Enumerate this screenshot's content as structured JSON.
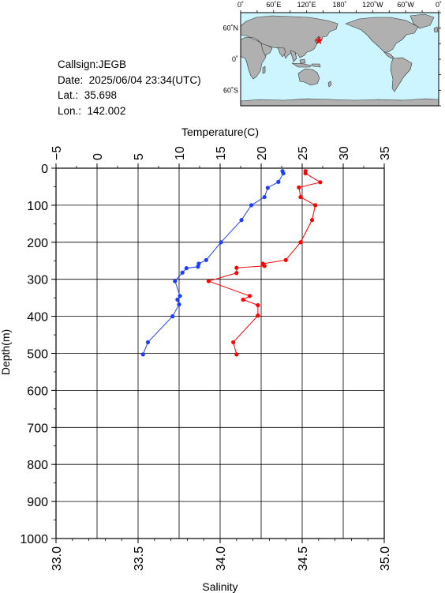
{
  "info": {
    "callsign": "Callsign:JEGB",
    "date": "Date:  2025/06/04 23:34(UTC)",
    "lat": "Lat.:  35.698",
    "lon": "Lon.:  142.002"
  },
  "colors": {
    "temperature": "#1f3fff",
    "salinity": "#ff0000",
    "ocean": "#ccf5ff",
    "land": "#b0b0b0",
    "star": "#ff0000"
  },
  "map": {
    "lon_labels": [
      "0˚",
      "60˚E",
      "120˚E",
      "180˚",
      "120˚W",
      "60˚W",
      "0˚"
    ],
    "lat_labels": [
      "60˚N",
      "0˚",
      "60˚S"
    ],
    "marker": {
      "lat": 35.698,
      "lon": 142.002
    }
  },
  "chart_data": {
    "type": "line",
    "ylabel": "Depth(m)",
    "ylim": [
      1000,
      0
    ],
    "yticks": [
      "0",
      "100",
      "200",
      "300",
      "400",
      "500",
      "600",
      "700",
      "800",
      "900",
      "1000"
    ],
    "ytick_values": [
      0,
      100,
      200,
      300,
      400,
      500,
      600,
      700,
      800,
      900,
      1000
    ],
    "top_axis": {
      "label": "Temperature(C)",
      "range": [
        -5,
        35
      ],
      "ticks": [
        "−5",
        "0",
        "5",
        "10",
        "15",
        "20",
        "25",
        "30",
        "35"
      ],
      "tick_values": [
        -5,
        0,
        5,
        10,
        15,
        20,
        25,
        30,
        35
      ]
    },
    "bottom_axis": {
      "label": "Salinity",
      "range": [
        33.0,
        35.0
      ],
      "ticks": [
        "33.0",
        "33.5",
        "34.0",
        "34.5",
        "35.0"
      ],
      "tick_values": [
        33.0,
        33.5,
        34.0,
        34.5,
        35.0
      ]
    },
    "grid": true,
    "series": [
      {
        "axis": "top",
        "color": "#1f3fff",
        "points": [
          [
            22.6,
            8
          ],
          [
            22.7,
            14
          ],
          [
            22.1,
            37
          ],
          [
            20.8,
            53
          ],
          [
            20.4,
            78
          ],
          [
            18.8,
            100
          ],
          [
            17.6,
            140
          ],
          [
            15.1,
            200
          ],
          [
            13.3,
            248
          ],
          [
            12.4,
            258
          ],
          [
            12.3,
            266
          ],
          [
            10.9,
            270
          ],
          [
            10.4,
            282
          ],
          [
            9.5,
            305
          ],
          [
            10.1,
            345
          ],
          [
            9.8,
            355
          ],
          [
            10.0,
            368
          ],
          [
            9.2,
            400
          ],
          [
            6.2,
            470
          ],
          [
            5.6,
            503
          ]
        ]
      },
      {
        "axis": "bottom",
        "color": "#ff0000",
        "points": [
          [
            34.52,
            8
          ],
          [
            34.52,
            14
          ],
          [
            34.61,
            38
          ],
          [
            34.48,
            52
          ],
          [
            34.49,
            78
          ],
          [
            34.58,
            100
          ],
          [
            34.56,
            140
          ],
          [
            34.49,
            200
          ],
          [
            34.4,
            248
          ],
          [
            34.26,
            258
          ],
          [
            34.27,
            264
          ],
          [
            34.1,
            269
          ],
          [
            34.1,
            283
          ],
          [
            33.93,
            305
          ],
          [
            34.18,
            345
          ],
          [
            34.14,
            355
          ],
          [
            34.23,
            370
          ],
          [
            34.23,
            398
          ],
          [
            34.08,
            470
          ],
          [
            34.1,
            503
          ]
        ]
      }
    ]
  }
}
